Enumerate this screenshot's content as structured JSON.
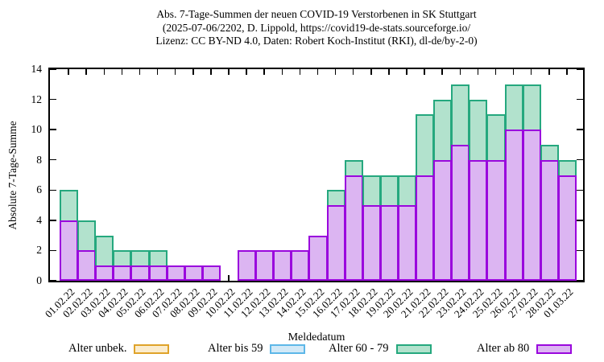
{
  "chart_data": {
    "type": "bar",
    "stacked": true,
    "title_lines": [
      "Abs. 7-Tage-Summen der neuen COVID-19 Verstorbenen in SK Stuttgart",
      "(2025-07-06/2202, D. Lippold, https://covid19-de-stats.sourceforge.io/",
      "Lizenz: CC BY-ND 4.0, Daten: Robert Koch-Institut (RKI), dl-de/by-2-0)"
    ],
    "xlabel": "Meldedatum",
    "ylabel": "Absolute 7-Tage-Summe",
    "ylim": [
      0,
      14
    ],
    "yticks": [
      0,
      2,
      4,
      6,
      8,
      10,
      12,
      14
    ],
    "grid": false,
    "legend_position": "bottom",
    "categories": [
      "01.02.22",
      "02.02.22",
      "03.02.22",
      "04.02.22",
      "05.02.22",
      "06.02.22",
      "07.02.22",
      "08.02.22",
      "09.02.22",
      "10.02.22",
      "11.02.22",
      "12.02.22",
      "13.02.22",
      "14.02.22",
      "15.02.22",
      "16.02.22",
      "17.02.22",
      "18.02.22",
      "19.02.22",
      "20.02.22",
      "21.02.22",
      "22.02.22",
      "23.02.22",
      "24.02.22",
      "25.02.22",
      "26.02.22",
      "27.02.22",
      "28.02.22",
      "01.03.22"
    ],
    "series": [
      {
        "name": "Alter ab 80",
        "fill": "#dcb5f2",
        "border": "#9a07dd",
        "values": [
          4,
          2,
          1,
          1,
          1,
          1,
          1,
          1,
          1,
          0,
          2,
          2,
          2,
          2,
          3,
          5,
          7,
          5,
          5,
          5,
          7,
          8,
          9,
          8,
          8,
          10,
          10,
          8,
          7
        ]
      },
      {
        "name": "Alter 60 - 79",
        "fill": "#b2e2cd",
        "border": "#25a87e",
        "values": [
          2,
          2,
          2,
          1,
          1,
          1,
          0,
          0,
          0,
          0,
          0,
          0,
          0,
          0,
          0,
          1,
          1,
          2,
          2,
          2,
          4,
          4,
          4,
          4,
          3,
          3,
          3,
          1,
          1
        ]
      },
      {
        "name": "Alter bis 59",
        "fill": "#d2e9f7",
        "border": "#5db7e8",
        "values": [
          0,
          0,
          0,
          0,
          0,
          0,
          0,
          0,
          0,
          0,
          0,
          0,
          0,
          0,
          0,
          0,
          0,
          0,
          0,
          0,
          0,
          0,
          0,
          0,
          0,
          0,
          0,
          0,
          0
        ]
      },
      {
        "name": "Alter unbek.",
        "fill": "#fbeccd",
        "border": "#dfa32a",
        "values": [
          0,
          0,
          0,
          0,
          0,
          0,
          0,
          0,
          0,
          0,
          0,
          0,
          0,
          0,
          0,
          0,
          0,
          0,
          0,
          0,
          0,
          0,
          0,
          0,
          0,
          0,
          0,
          0,
          0
        ]
      }
    ],
    "totals": [
      6,
      4,
      3,
      2,
      2,
      2,
      1,
      1,
      1,
      0,
      2,
      2,
      2,
      2,
      3,
      6,
      8,
      7,
      7,
      7,
      11,
      12,
      13,
      12,
      11,
      13,
      13,
      9,
      8
    ]
  },
  "legend": {
    "items": [
      {
        "label": "Alter unbek.",
        "fill": "#fbeccd",
        "border": "#dfa32a"
      },
      {
        "label": "Alter bis 59",
        "fill": "#d2e9f7",
        "border": "#5db7e8"
      },
      {
        "label": "Alter 60 - 79",
        "fill": "#b2e2cd",
        "border": "#25a87e"
      },
      {
        "label": "Alter ab 80",
        "fill": "#dcb5f2",
        "border": "#9a07dd"
      }
    ]
  }
}
